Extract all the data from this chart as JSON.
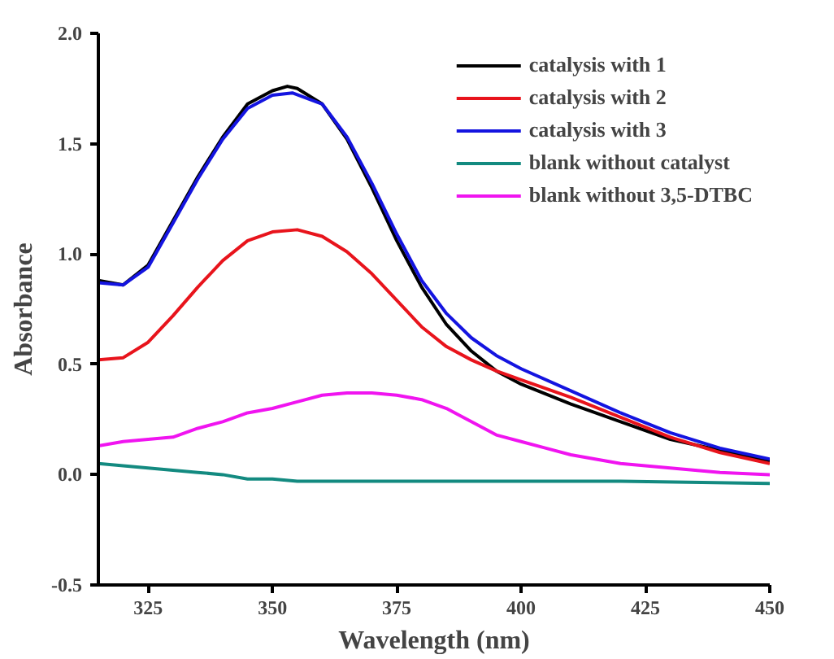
{
  "chart_data": {
    "type": "line",
    "xlabel": "Wavelength (nm)",
    "ylabel": "Absorbance",
    "xlim": [
      315,
      450
    ],
    "ylim": [
      -0.5,
      2.0
    ],
    "xticks": [
      325,
      350,
      375,
      400,
      425,
      450
    ],
    "yticks": [
      {
        "value": -0.5,
        "label": "-0.5"
      },
      {
        "value": 0,
        "label": "0.0"
      },
      {
        "value": 0.5,
        "label": "0.5"
      },
      {
        "value": 1,
        "label": "1.0"
      },
      {
        "value": 1.5,
        "label": "1.5"
      },
      {
        "value": 2,
        "label": "2.0"
      }
    ],
    "grid": false,
    "legend": "top right",
    "line_style": "solid",
    "marker": "none",
    "series": [
      {
        "name": "catalysis with 1",
        "color": "#000000",
        "x": [
          315,
          320,
          325,
          330,
          335,
          340,
          345,
          350,
          353,
          355,
          360,
          365,
          370,
          375,
          380,
          385,
          390,
          395,
          400,
          410,
          420,
          430,
          440,
          450
        ],
        "values": [
          0.88,
          0.86,
          0.95,
          1.15,
          1.35,
          1.53,
          1.68,
          1.74,
          1.76,
          1.75,
          1.68,
          1.52,
          1.3,
          1.06,
          0.85,
          0.68,
          0.56,
          0.47,
          0.41,
          0.32,
          0.24,
          0.16,
          0.11,
          0.06
        ]
      },
      {
        "name": "catalysis with 2",
        "color": "#e8141c",
        "x": [
          315,
          320,
          325,
          330,
          335,
          340,
          345,
          350,
          355,
          360,
          365,
          370,
          375,
          380,
          385,
          390,
          395,
          400,
          410,
          420,
          430,
          440,
          450
        ],
        "values": [
          0.52,
          0.53,
          0.6,
          0.72,
          0.85,
          0.97,
          1.06,
          1.1,
          1.11,
          1.08,
          1.01,
          0.91,
          0.79,
          0.67,
          0.58,
          0.52,
          0.47,
          0.43,
          0.35,
          0.26,
          0.17,
          0.1,
          0.05
        ]
      },
      {
        "name": "catalysis with 3",
        "color": "#1414e0",
        "x": [
          315,
          320,
          325,
          330,
          335,
          340,
          345,
          350,
          354,
          360,
          365,
          370,
          375,
          380,
          385,
          390,
          395,
          400,
          410,
          420,
          430,
          440,
          450
        ],
        "values": [
          0.87,
          0.86,
          0.94,
          1.14,
          1.34,
          1.52,
          1.66,
          1.72,
          1.73,
          1.68,
          1.53,
          1.32,
          1.09,
          0.88,
          0.73,
          0.62,
          0.54,
          0.48,
          0.38,
          0.28,
          0.19,
          0.12,
          0.07
        ]
      },
      {
        "name": "blank without catalyst",
        "color": "#138a80",
        "x": [
          315,
          320,
          325,
          330,
          335,
          340,
          345,
          350,
          355,
          360,
          370,
          380,
          400,
          420,
          450
        ],
        "values": [
          0.05,
          0.04,
          0.03,
          0.02,
          0.01,
          0.0,
          -0.02,
          -0.02,
          -0.03,
          -0.03,
          -0.03,
          -0.03,
          -0.03,
          -0.03,
          -0.04
        ]
      },
      {
        "name": "blank without 3,5-DTBC",
        "color": "#f014f0",
        "x": [
          315,
          320,
          325,
          330,
          335,
          340,
          345,
          350,
          355,
          360,
          365,
          370,
          375,
          380,
          385,
          390,
          395,
          400,
          405,
          410,
          420,
          430,
          440,
          450
        ],
        "values": [
          0.13,
          0.15,
          0.16,
          0.17,
          0.21,
          0.24,
          0.28,
          0.3,
          0.33,
          0.36,
          0.37,
          0.37,
          0.36,
          0.34,
          0.3,
          0.24,
          0.18,
          0.15,
          0.12,
          0.09,
          0.05,
          0.03,
          0.01,
          0.0
        ]
      }
    ]
  }
}
